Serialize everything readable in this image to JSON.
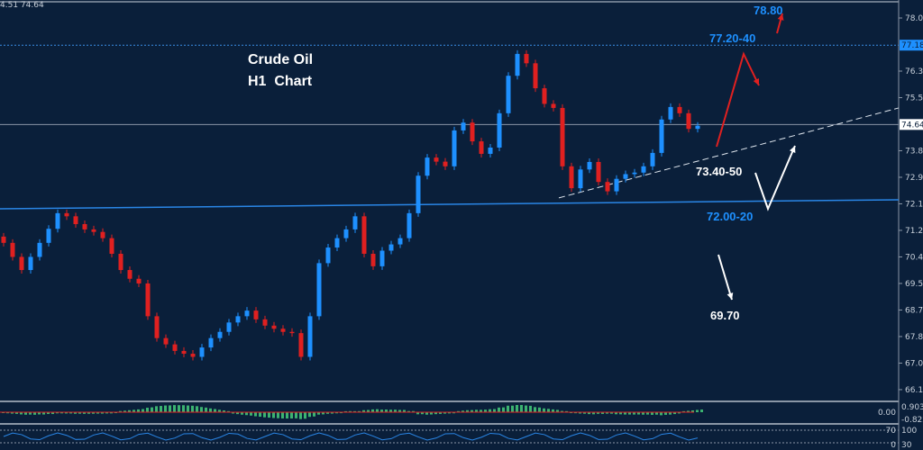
{
  "header": {
    "ohlc_readout": "4.51 74.64"
  },
  "chart_data": {
    "type": "candlestick",
    "title": "Crude Oil",
    "subtitle": "H1  Chart",
    "ylim": [
      65.9,
      78.6
    ],
    "y_ticks": [
      "78.05",
      "76.35",
      "75.50",
      "73.80",
      "72.95",
      "72.10",
      "71.25",
      "70.40",
      "69.55",
      "68.70",
      "67.85",
      "67.00",
      "66.15"
    ],
    "closes": [
      70.85,
      70.4,
      69.98,
      70.4,
      70.85,
      71.3,
      71.8,
      71.7,
      71.45,
      71.28,
      71.2,
      71.0,
      70.5,
      69.98,
      69.7,
      69.55,
      68.5,
      67.8,
      67.6,
      67.39,
      67.3,
      67.2,
      67.5,
      67.8,
      68.0,
      68.3,
      68.5,
      68.68,
      68.4,
      68.2,
      68.1,
      68.0,
      67.96,
      67.2,
      68.5,
      70.2,
      70.7,
      71.0,
      71.28,
      71.7,
      70.5,
      70.1,
      70.6,
      70.8,
      71.0,
      71.8,
      73.0,
      73.58,
      73.45,
      73.3,
      74.45,
      74.7,
      74.1,
      73.7,
      73.9,
      75.0,
      76.2,
      76.9,
      76.6,
      75.8,
      75.3,
      75.17,
      73.3,
      72.6,
      73.2,
      73.44,
      72.8,
      72.5,
      72.9,
      73.05,
      73.1,
      73.3,
      73.73,
      74.8,
      75.2,
      75.0,
      74.5,
      74.6
    ],
    "current_price": "74.64",
    "dotted_level": "77.18",
    "support_line": [
      71.94,
      72.23
    ],
    "trendline": [
      72.29,
      75.17
    ],
    "annotations": [
      {
        "text": "78.80",
        "color": "#1e90ff"
      },
      {
        "text": "77.20-40",
        "color": "#1e90ff"
      },
      {
        "text": "73.40-50",
        "color": "#ffffff"
      },
      {
        "text": "72.00-20",
        "color": "#1e90ff"
      },
      {
        "text": "69.70",
        "color": "#ffffff"
      }
    ],
    "macd_ticks": [
      "0.903",
      "0.00",
      "-0.822"
    ],
    "osc_ticks": [
      "100",
      "70",
      "30",
      "0"
    ],
    "colors": {
      "bull": "#1e90ff",
      "bear": "#e02020",
      "background": "#0a1f3a",
      "axis": "#8a96a6"
    }
  }
}
